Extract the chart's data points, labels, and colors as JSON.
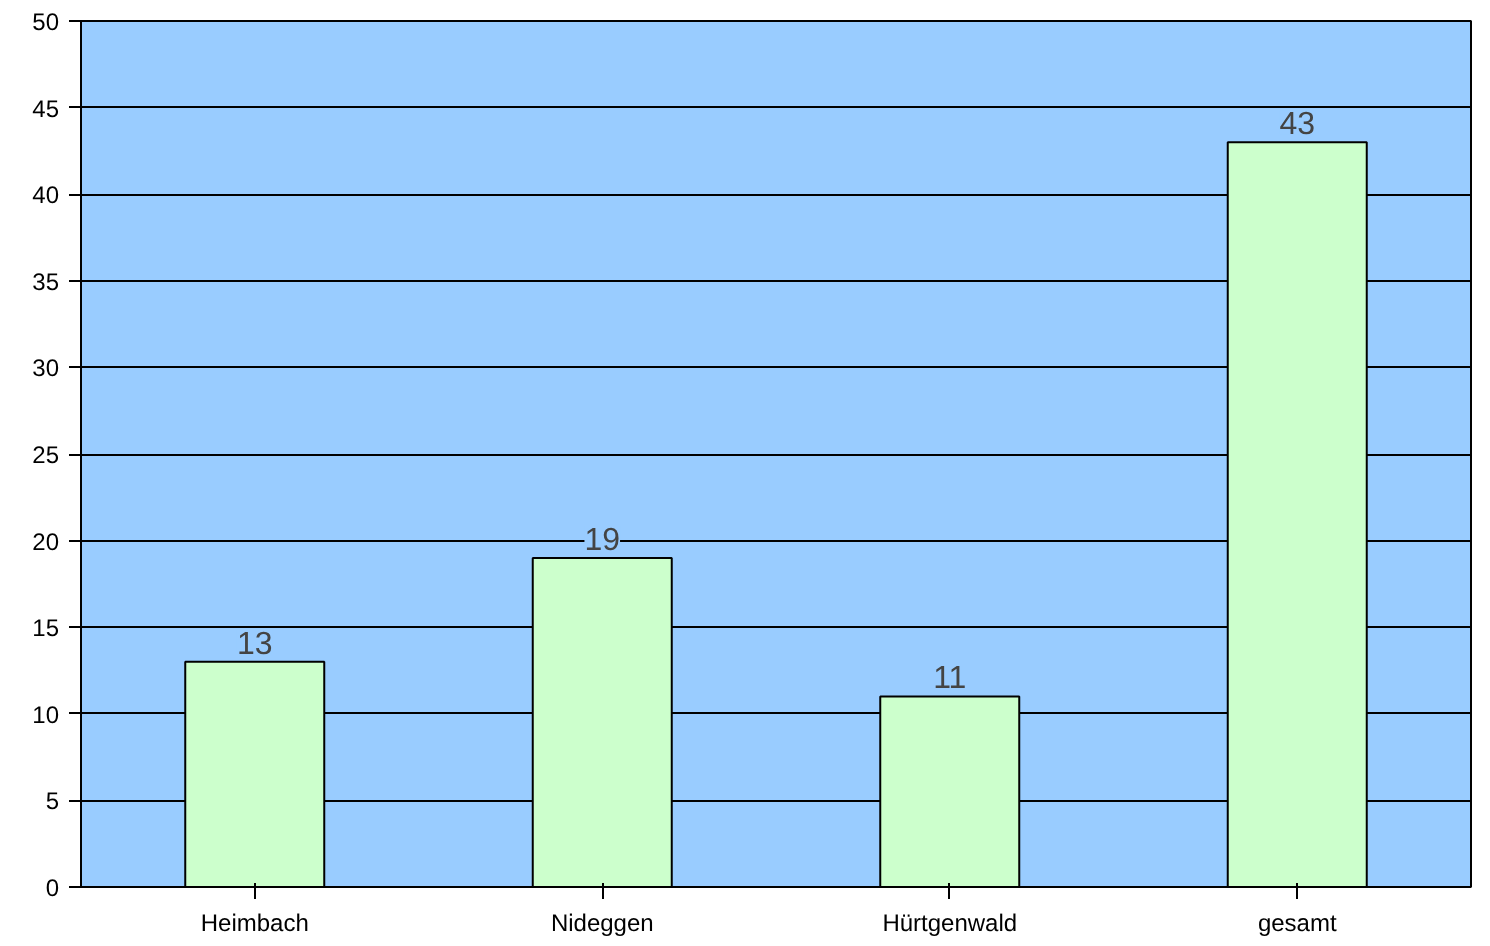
{
  "chart_data": {
    "type": "bar",
    "categories": [
      "Heimbach",
      "Nideggen",
      "Hürtgenwald",
      "gesamt"
    ],
    "values": [
      13,
      19,
      11,
      43
    ],
    "color": "#ccffcc",
    "ylim": [
      0,
      50
    ],
    "yticks": [
      0,
      5,
      10,
      15,
      20,
      25,
      30,
      35,
      40,
      45,
      50
    ],
    "grid": "y",
    "data_labels": true
  }
}
